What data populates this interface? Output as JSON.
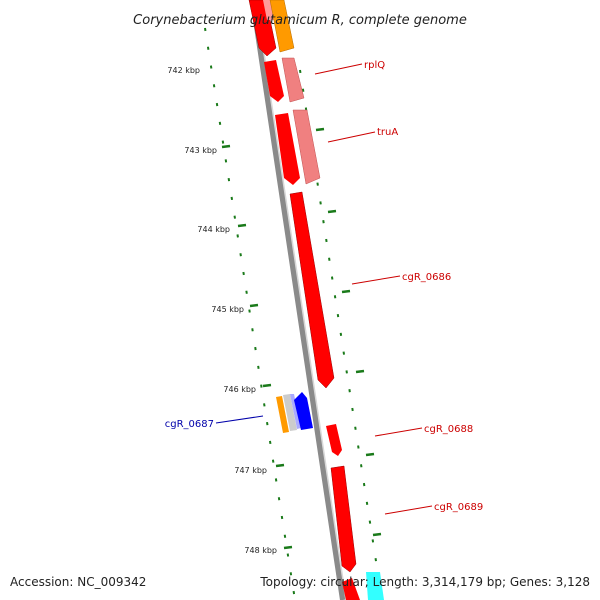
{
  "title": "Corynebacterium glutamicum R, complete genome",
  "footer": {
    "accession": "Accession: NC_009342",
    "topology": "Topology: circular; Length: 3,314,179 bp; Genes: 3,128"
  },
  "scale_ticks": [
    "742 kbp",
    "743 kbp",
    "744 kbp",
    "745 kbp",
    "746 kbp",
    "747 kbp",
    "748 kbp"
  ],
  "gene_labels": [
    {
      "id": "rplQ",
      "text": "rplQ",
      "color": "#cc0000"
    },
    {
      "id": "truA",
      "text": "truA",
      "color": "#cc0000"
    },
    {
      "id": "cgR_0686",
      "text": "cgR_0686",
      "color": "#cc0000"
    },
    {
      "id": "cgR_0688",
      "text": "cgR_0688",
      "color": "#cc0000"
    },
    {
      "id": "cgR_0689",
      "text": "cgR_0689",
      "color": "#cc0000"
    },
    {
      "id": "cgR_0687",
      "text": "cgR_0687",
      "color": "#0000aa"
    }
  ],
  "colors": {
    "forward_gene": "#ff0000",
    "light_gene": "#f08080",
    "orange_gene": "#ff9a00",
    "blue_gene": "#0000ff",
    "cyan_gene": "#33ffff",
    "backbone": "#777777",
    "gc_ticks": "#1a7a1a"
  }
}
